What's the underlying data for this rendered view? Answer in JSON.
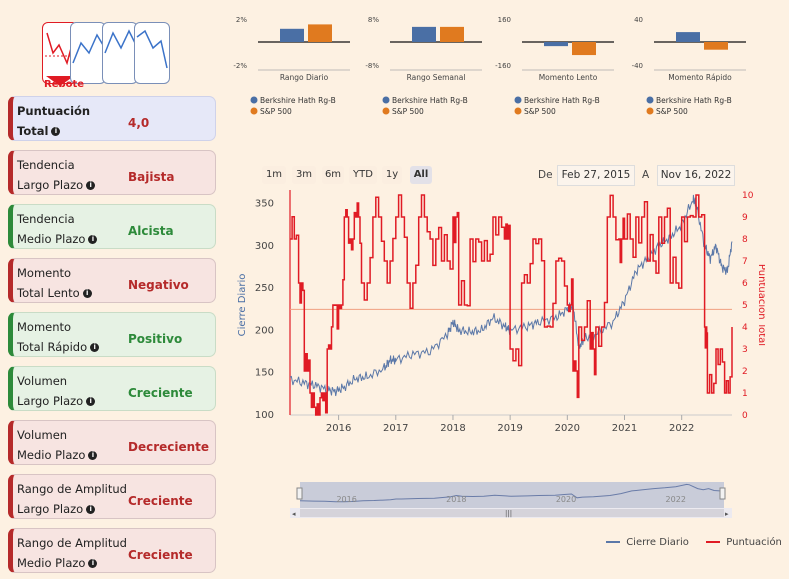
{
  "rebote_label": "Rebote",
  "cards": [
    {
      "line1": "Puntuación",
      "line2": "Total",
      "value": "4,0",
      "style": "blue",
      "bold": true
    },
    {
      "line1": "Tendencia",
      "line2": "Largo Plazo",
      "value": "Bajista",
      "style": "red"
    },
    {
      "line1": "Tendencia",
      "line2": "Medio Plazo",
      "value": "Alcista",
      "style": "green"
    },
    {
      "line1": "Momento",
      "line2": "Total Lento",
      "value": "Negativo",
      "style": "red"
    },
    {
      "line1": "Momento",
      "line2": "Total Rápido",
      "value": "Positivo",
      "style": "green"
    },
    {
      "line1": "Volumen",
      "line2": "Largo Plazo",
      "value": "Creciente",
      "style": "green"
    },
    {
      "line1": "Volumen",
      "line2": "Medio Plazo",
      "value": "Decreciente",
      "style": "red"
    },
    {
      "line1": "Rango de Amplitud",
      "line2": "Largo Plazo",
      "value": "Creciente",
      "style": "red"
    },
    {
      "line1": "Rango de Amplitud",
      "line2": "Medio Plazo",
      "value": "Creciente",
      "style": "red"
    }
  ],
  "range_buttons": [
    "1m",
    "3m",
    "6m",
    "YTD",
    "1y",
    "All"
  ],
  "active_range": "All",
  "date_from_label": "De",
  "date_from": "Feb 27, 2015",
  "date_to_label": "A",
  "date_to": "Nov 16, 2022",
  "legend": {
    "close": "Cierre Diario",
    "score": "Puntuación"
  },
  "colors": {
    "brk": "#4a6fa5",
    "sp": "#e07a1f",
    "score": "#e01b24",
    "close": "#5b78a8",
    "refline": "#f0a080"
  },
  "mini_legend": {
    "brk": "Berkshire Hath Rg-B",
    "sp": "S&P 500"
  },
  "chart_data": [
    {
      "type": "bar",
      "title": "Rango Diario",
      "series": [
        {
          "name": "Berkshire Hath Rg-B",
          "values": [
            1.2
          ]
        },
        {
          "name": "S&P 500",
          "values": [
            1.6
          ]
        }
      ],
      "ylim": [
        -2,
        2
      ],
      "ytick_labels": [
        "2%",
        "-2%"
      ]
    },
    {
      "type": "bar",
      "title": "Rango Semanal",
      "series": [
        {
          "name": "Berkshire Hath Rg-B",
          "values": [
            5.5
          ]
        },
        {
          "name": "S&P 500",
          "values": [
            5.5
          ]
        }
      ],
      "ylim": [
        -8,
        8
      ],
      "ytick_labels": [
        "8%",
        "-8%"
      ]
    },
    {
      "type": "bar",
      "title": "Momento Lento",
      "series": [
        {
          "name": "Berkshire Hath Rg-B",
          "values": [
            -30
          ]
        },
        {
          "name": "S&P 500",
          "values": [
            -95
          ]
        }
      ],
      "ylim": [
        -160,
        160
      ],
      "ytick_labels": [
        "160",
        "-160"
      ]
    },
    {
      "type": "bar",
      "title": "Momento Rápido",
      "series": [
        {
          "name": "Berkshire Hath Rg-B",
          "values": [
            18
          ]
        },
        {
          "name": "S&P 500",
          "values": [
            -14
          ]
        }
      ],
      "ylim": [
        -40,
        40
      ],
      "ytick_labels": [
        "40",
        "-40"
      ]
    },
    {
      "type": "line",
      "ylabel": "Cierre Diario",
      "y2label": "Puntuación Total",
      "ylim": [
        100,
        360
      ],
      "y2lim": [
        0,
        10
      ],
      "yticks": [
        100,
        150,
        200,
        250,
        300,
        350
      ],
      "y2ticks": [
        0,
        1,
        2,
        3,
        4,
        5,
        6,
        7,
        8,
        9,
        10
      ],
      "xticks": [
        "2016",
        "2017",
        "2018",
        "2019",
        "2020",
        "2021",
        "2022"
      ],
      "xrange": [
        2015.15,
        2022.88
      ],
      "reference_line": 4.8,
      "series": [
        {
          "name": "Cierre Diario",
          "x": [
            2015.15,
            2015.4,
            2015.6,
            2015.8,
            2015.95,
            2016.1,
            2016.3,
            2016.5,
            2016.8,
            2016.9,
            2017.0,
            2017.3,
            2017.6,
            2017.9,
            2018.0,
            2018.1,
            2018.3,
            2018.5,
            2018.7,
            2018.9,
            2019.0,
            2019.3,
            2019.5,
            2019.8,
            2020.0,
            2020.1,
            2020.2,
            2020.3,
            2020.5,
            2020.8,
            2021.0,
            2021.2,
            2021.4,
            2021.6,
            2021.8,
            2022.0,
            2022.2,
            2022.25,
            2022.4,
            2022.5,
            2022.6,
            2022.7,
            2022.8,
            2022.88
          ],
          "values": [
            142,
            138,
            135,
            130,
            128,
            133,
            143,
            145,
            155,
            165,
            165,
            172,
            175,
            195,
            210,
            200,
            198,
            200,
            215,
            205,
            200,
            205,
            210,
            215,
            225,
            230,
            180,
            190,
            195,
            210,
            235,
            270,
            285,
            300,
            310,
            325,
            355,
            350,
            300,
            285,
            300,
            275,
            270,
            305
          ]
        },
        {
          "name": "Puntuación Total",
          "x": [
            2015.15,
            2015.3,
            2015.4,
            2015.5,
            2015.6,
            2015.7,
            2015.8,
            2015.9,
            2016.0,
            2016.1,
            2016.2,
            2016.3,
            2016.4,
            2016.6,
            2016.8,
            2017.0,
            2017.2,
            2017.4,
            2017.6,
            2017.8,
            2018.0,
            2018.1,
            2018.3,
            2018.5,
            2018.7,
            2018.9,
            2019.0,
            2019.2,
            2019.4,
            2019.6,
            2019.8,
            2020.0,
            2020.1,
            2020.2,
            2020.4,
            2020.5,
            2020.7,
            2020.9,
            2021.0,
            2021.2,
            2021.4,
            2021.6,
            2021.8,
            2022.0,
            2022.2,
            2022.4,
            2022.45,
            2022.6,
            2022.75,
            2022.88
          ],
          "values": [
            8,
            6,
            2,
            1,
            0,
            1,
            3,
            5,
            5,
            9,
            8,
            9,
            6,
            9,
            7,
            9,
            6,
            9,
            8,
            7,
            9,
            5,
            8,
            7,
            9,
            8,
            3,
            6,
            8,
            4,
            7,
            5,
            2,
            4,
            3,
            4,
            9,
            8,
            8,
            9,
            7,
            9,
            6,
            9,
            9,
            4,
            1,
            3,
            1,
            4
          ]
        }
      ]
    }
  ]
}
